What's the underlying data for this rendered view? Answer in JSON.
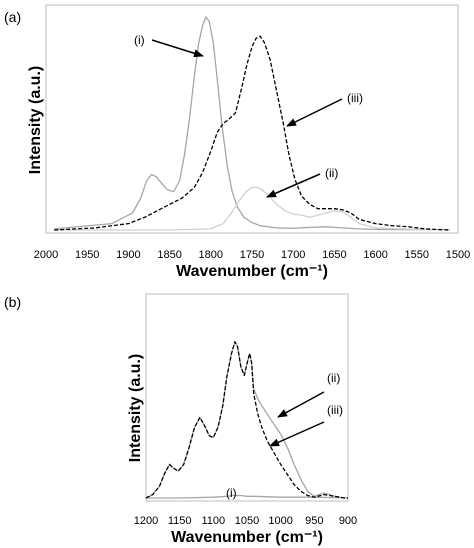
{
  "chart_data": [
    {
      "type": "line",
      "panel_label": "(a)",
      "xlabel": "Wavenumber (cm⁻¹)",
      "ylabel": "Intensity (a.u.)",
      "xlim": [
        2000,
        1500
      ],
      "x_reversed": true,
      "xticks": [
        "2000",
        "1950",
        "1900",
        "1850",
        "1800",
        "1750",
        "1700",
        "1650",
        "1600",
        "1550",
        "1500"
      ],
      "ylim": [
        0,
        1.0
      ],
      "grid": false,
      "series": [
        {
          "name": "(i)",
          "color": "#a6a6a6",
          "dash": "solid",
          "x": [
            1990,
            1920,
            1895,
            1885,
            1878,
            1872,
            1866,
            1860,
            1853,
            1845,
            1838,
            1832,
            1826,
            1820,
            1815,
            1810,
            1806,
            1802,
            1797,
            1792,
            1786,
            1780,
            1774,
            1768,
            1760,
            1750,
            1740,
            1720,
            1700,
            1680,
            1660,
            1640,
            1620,
            1600,
            1570,
            1540,
            1510
          ],
          "y": [
            0.005,
            0.03,
            0.08,
            0.15,
            0.23,
            0.26,
            0.25,
            0.22,
            0.19,
            0.18,
            0.23,
            0.35,
            0.52,
            0.72,
            0.87,
            0.96,
            1.0,
            0.98,
            0.88,
            0.7,
            0.48,
            0.3,
            0.18,
            0.11,
            0.06,
            0.035,
            0.02,
            0.01,
            0.008,
            0.012,
            0.015,
            0.01,
            0.005,
            0.003,
            0.002,
            0.002,
            0.001
          ]
        },
        {
          "name": "(ii)",
          "color": "#d0d0d0",
          "dash": "solid",
          "x": [
            1990,
            1850,
            1800,
            1785,
            1775,
            1765,
            1757,
            1750,
            1744,
            1738,
            1730,
            1720,
            1710,
            1700,
            1690,
            1680,
            1670,
            1660,
            1650,
            1640,
            1630,
            1620,
            1600,
            1570,
            1540,
            1510
          ],
          "y": [
            0.0,
            0.0,
            0.005,
            0.03,
            0.08,
            0.14,
            0.18,
            0.2,
            0.2,
            0.19,
            0.16,
            0.12,
            0.09,
            0.075,
            0.07,
            0.06,
            0.07,
            0.08,
            0.09,
            0.085,
            0.06,
            0.03,
            0.01,
            0.005,
            0.002,
            0.0
          ],
          "annotation": "(ii)"
        },
        {
          "name": "(iii)",
          "color": "#000000",
          "dash": "dashed",
          "x": [
            1990,
            1940,
            1900,
            1880,
            1865,
            1850,
            1835,
            1820,
            1810,
            1800,
            1792,
            1785,
            1778,
            1770,
            1763,
            1756,
            1750,
            1745,
            1740,
            1735,
            1728,
            1720,
            1712,
            1705,
            1698,
            1690,
            1680,
            1670,
            1660,
            1650,
            1640,
            1630,
            1620,
            1600,
            1580,
            1560,
            1540,
            1510
          ],
          "y": [
            0.0,
            0.01,
            0.03,
            0.06,
            0.09,
            0.12,
            0.15,
            0.2,
            0.27,
            0.37,
            0.46,
            0.5,
            0.52,
            0.55,
            0.66,
            0.78,
            0.86,
            0.9,
            0.91,
            0.88,
            0.8,
            0.65,
            0.5,
            0.35,
            0.24,
            0.16,
            0.12,
            0.1,
            0.1,
            0.1,
            0.095,
            0.08,
            0.05,
            0.03,
            0.02,
            0.015,
            0.005,
            0.0
          ],
          "annotation": "(iii)"
        }
      ]
    },
    {
      "type": "line",
      "panel_label": "(b)",
      "xlabel": "Wavenumber (cm⁻¹)",
      "ylabel": "Intensity (a.u.)",
      "xlim": [
        1200,
        900
      ],
      "x_reversed": true,
      "xticks": [
        "1200",
        "1150",
        "1100",
        "1050",
        "1000",
        "950",
        "900"
      ],
      "ylim": [
        0,
        1.0
      ],
      "grid": false,
      "series": [
        {
          "name": "(i)",
          "color": "#a6a6a6",
          "dash": "solid",
          "x": [
            1200,
            1150,
            1100,
            1080,
            1070,
            1060,
            1050,
            1040,
            1000,
            950,
            900
          ],
          "y": [
            0.0,
            0.0,
            0.005,
            0.01,
            0.015,
            0.015,
            0.01,
            0.01,
            0.005,
            0.005,
            0.0
          ],
          "annotation": "(i)"
        },
        {
          "name": "(ii)",
          "color": "#a6a6a6",
          "dash": "solid",
          "x": [
            1200,
            1190,
            1180,
            1172,
            1165,
            1160,
            1152,
            1144,
            1136,
            1128,
            1120,
            1113,
            1106,
            1100,
            1093,
            1086,
            1080,
            1073,
            1068,
            1064,
            1059,
            1054,
            1050,
            1046,
            1043,
            1040,
            1034,
            1028,
            1020,
            1010,
            1000,
            990,
            980,
            970,
            960,
            950,
            935,
            920,
            905,
            900
          ],
          "y": [
            0.0,
            0.02,
            0.07,
            0.15,
            0.2,
            0.18,
            0.16,
            0.2,
            0.3,
            0.42,
            0.48,
            0.43,
            0.37,
            0.36,
            0.42,
            0.55,
            0.72,
            0.86,
            0.93,
            0.9,
            0.78,
            0.73,
            0.8,
            0.86,
            0.8,
            0.65,
            0.59,
            0.55,
            0.5,
            0.44,
            0.38,
            0.3,
            0.2,
            0.11,
            0.04,
            0.01,
            0.03,
            0.01,
            0.0,
            0.0
          ],
          "annotation": "(ii)"
        },
        {
          "name": "(iii)",
          "color": "#000000",
          "dash": "dashed",
          "x": [
            1200,
            1190,
            1180,
            1172,
            1165,
            1160,
            1152,
            1144,
            1136,
            1128,
            1120,
            1113,
            1106,
            1100,
            1093,
            1086,
            1080,
            1073,
            1068,
            1064,
            1059,
            1054,
            1050,
            1046,
            1043,
            1040,
            1034,
            1028,
            1020,
            1010,
            1000,
            990,
            980,
            970,
            960,
            950,
            935,
            920,
            905,
            900
          ],
          "y": [
            0.0,
            0.02,
            0.07,
            0.15,
            0.2,
            0.18,
            0.16,
            0.2,
            0.3,
            0.42,
            0.48,
            0.43,
            0.37,
            0.36,
            0.42,
            0.55,
            0.72,
            0.86,
            0.93,
            0.9,
            0.78,
            0.73,
            0.8,
            0.86,
            0.8,
            0.62,
            0.5,
            0.42,
            0.34,
            0.27,
            0.2,
            0.14,
            0.08,
            0.04,
            0.015,
            0.005,
            0.02,
            0.01,
            0.0,
            0.0
          ],
          "annotation": "(iii)"
        }
      ]
    }
  ]
}
